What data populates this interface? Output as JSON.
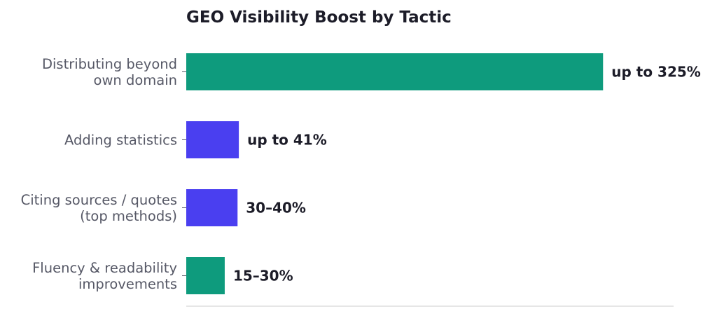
{
  "chart_data": {
    "type": "bar",
    "orientation": "horizontal",
    "title": "GEO Visibility Boost by Tactic",
    "xlabel": "",
    "ylabel": "",
    "grid": false,
    "xlim": [
      0,
      380
    ],
    "categories": [
      [
        "Distributing beyond",
        "own domain"
      ],
      [
        "Adding statistics"
      ],
      [
        "Citing sources / quotes",
        "(top methods)"
      ],
      [
        "Fluency & readability",
        "improvements"
      ]
    ],
    "values": [
      325,
      41,
      40,
      30
    ],
    "value_labels": [
      "up to 325%",
      "up to 41%",
      "30–40%",
      "15–30%"
    ],
    "colors": [
      "#0e9b7d",
      "#4a3ff0",
      "#4a3ff0",
      "#0e9b7d"
    ]
  }
}
